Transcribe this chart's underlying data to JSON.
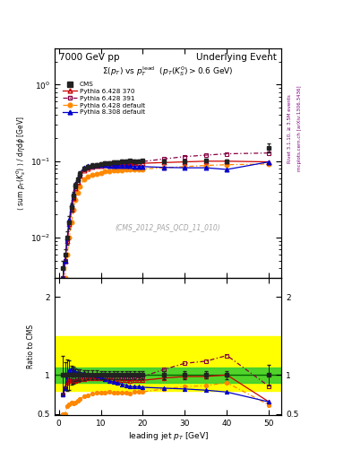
{
  "title_left": "7000 GeV pp",
  "title_right": "Underlying Event",
  "plot_title": "$\\Sigma(p_T)$ vs $p_T^{\\rm lead}$  $(p_T(K_S^0) > 0.6$ GeV$)$",
  "ylabel_main": "$\\langle$ sum $p_T(K_s^0)$ $\\rangle$ / d$\\eta$d$\\phi$ [GeV]",
  "ylabel_ratio": "Ratio to CMS",
  "xlabel": "leading jet $p_T$ [GeV]",
  "watermark": "(CMS_2012_PAS_QCD_11_010)",
  "rivet_text": "Rivet 3.1.10, ≥ 3.5M events",
  "mcplots_text": "mcplots.cern.ch [arXiv:1306.3436]",
  "cms_x": [
    1.0,
    1.5,
    2.0,
    2.5,
    3.0,
    3.5,
    4.0,
    4.5,
    5.0,
    6.0,
    7.0,
    8.0,
    9.0,
    10.0,
    11.0,
    12.0,
    13.0,
    14.0,
    15.0,
    16.0,
    17.0,
    18.0,
    19.0,
    20.0,
    25.0,
    30.0,
    35.0,
    40.0,
    50.0
  ],
  "cms_y": [
    0.004,
    0.006,
    0.01,
    0.016,
    0.025,
    0.036,
    0.048,
    0.058,
    0.068,
    0.08,
    0.085,
    0.088,
    0.09,
    0.092,
    0.094,
    0.095,
    0.097,
    0.098,
    0.099,
    0.1,
    0.101,
    0.1,
    0.1,
    0.101,
    0.1,
    0.1,
    0.102,
    0.1,
    0.15
  ],
  "cms_yerr": [
    0.001,
    0.001,
    0.002,
    0.003,
    0.003,
    0.004,
    0.004,
    0.004,
    0.005,
    0.005,
    0.005,
    0.005,
    0.005,
    0.005,
    0.005,
    0.005,
    0.005,
    0.005,
    0.005,
    0.005,
    0.005,
    0.005,
    0.005,
    0.005,
    0.005,
    0.005,
    0.005,
    0.005,
    0.02
  ],
  "p6_370_x": [
    1.0,
    1.5,
    2.0,
    2.5,
    3.0,
    3.5,
    4.0,
    4.5,
    5.0,
    6.0,
    7.0,
    8.0,
    9.0,
    10.0,
    11.0,
    12.0,
    13.0,
    14.0,
    15.0,
    16.0,
    17.0,
    18.0,
    19.0,
    20.0,
    25.0,
    30.0,
    35.0,
    40.0,
    50.0
  ],
  "p6_370_y": [
    0.003,
    0.005,
    0.009,
    0.015,
    0.023,
    0.033,
    0.044,
    0.054,
    0.064,
    0.076,
    0.081,
    0.084,
    0.086,
    0.088,
    0.089,
    0.09,
    0.091,
    0.092,
    0.092,
    0.093,
    0.093,
    0.093,
    0.093,
    0.094,
    0.096,
    0.098,
    0.1,
    0.1,
    0.098
  ],
  "p6_391_x": [
    1.0,
    1.5,
    2.0,
    2.5,
    3.0,
    3.5,
    4.0,
    4.5,
    5.0,
    6.0,
    7.0,
    8.0,
    9.0,
    10.0,
    11.0,
    12.0,
    13.0,
    14.0,
    15.0,
    16.0,
    17.0,
    18.0,
    19.0,
    20.0,
    25.0,
    30.0,
    35.0,
    40.0,
    50.0
  ],
  "p6_391_y": [
    0.003,
    0.005,
    0.009,
    0.015,
    0.023,
    0.033,
    0.044,
    0.054,
    0.065,
    0.078,
    0.083,
    0.086,
    0.088,
    0.09,
    0.092,
    0.093,
    0.094,
    0.095,
    0.096,
    0.097,
    0.097,
    0.098,
    0.099,
    0.099,
    0.107,
    0.115,
    0.12,
    0.125,
    0.128
  ],
  "p6_def_x": [
    1.0,
    1.5,
    2.0,
    2.5,
    3.0,
    3.5,
    4.0,
    4.5,
    5.0,
    6.0,
    7.0,
    8.0,
    9.0,
    10.0,
    11.0,
    12.0,
    13.0,
    14.0,
    15.0,
    16.0,
    17.0,
    18.0,
    19.0,
    20.0,
    25.0,
    30.0,
    35.0,
    40.0,
    50.0
  ],
  "p6_def_y": [
    0.002,
    0.003,
    0.006,
    0.01,
    0.016,
    0.023,
    0.031,
    0.039,
    0.047,
    0.058,
    0.063,
    0.067,
    0.069,
    0.071,
    0.073,
    0.074,
    0.075,
    0.076,
    0.076,
    0.077,
    0.077,
    0.078,
    0.078,
    0.079,
    0.082,
    0.085,
    0.088,
    0.09,
    0.092
  ],
  "p8_def_x": [
    1.0,
    1.5,
    2.0,
    2.5,
    3.0,
    3.5,
    4.0,
    4.5,
    5.0,
    6.0,
    7.0,
    8.0,
    9.0,
    10.0,
    11.0,
    12.0,
    13.0,
    14.0,
    15.0,
    16.0,
    17.0,
    18.0,
    19.0,
    20.0,
    25.0,
    30.0,
    35.0,
    40.0,
    50.0
  ],
  "p8_def_y": [
    0.003,
    0.005,
    0.01,
    0.017,
    0.027,
    0.038,
    0.05,
    0.06,
    0.07,
    0.082,
    0.086,
    0.088,
    0.089,
    0.089,
    0.089,
    0.088,
    0.088,
    0.088,
    0.087,
    0.087,
    0.086,
    0.085,
    0.085,
    0.085,
    0.083,
    0.082,
    0.082,
    0.078,
    0.098
  ],
  "color_cms": "#222222",
  "color_p6_370": "#cc0000",
  "color_p6_391": "#880044",
  "color_p6_def": "#ff8800",
  "color_p8_def": "#0000cc",
  "green_band_y1": 0.9,
  "green_band_y2": 1.1,
  "yellow_band_y1": 0.8,
  "yellow_band_y2": 1.5,
  "ylim_main": [
    0.003,
    3.0
  ],
  "ylim_ratio": [
    0.48,
    2.25
  ],
  "xlim": [
    -1,
    53
  ]
}
